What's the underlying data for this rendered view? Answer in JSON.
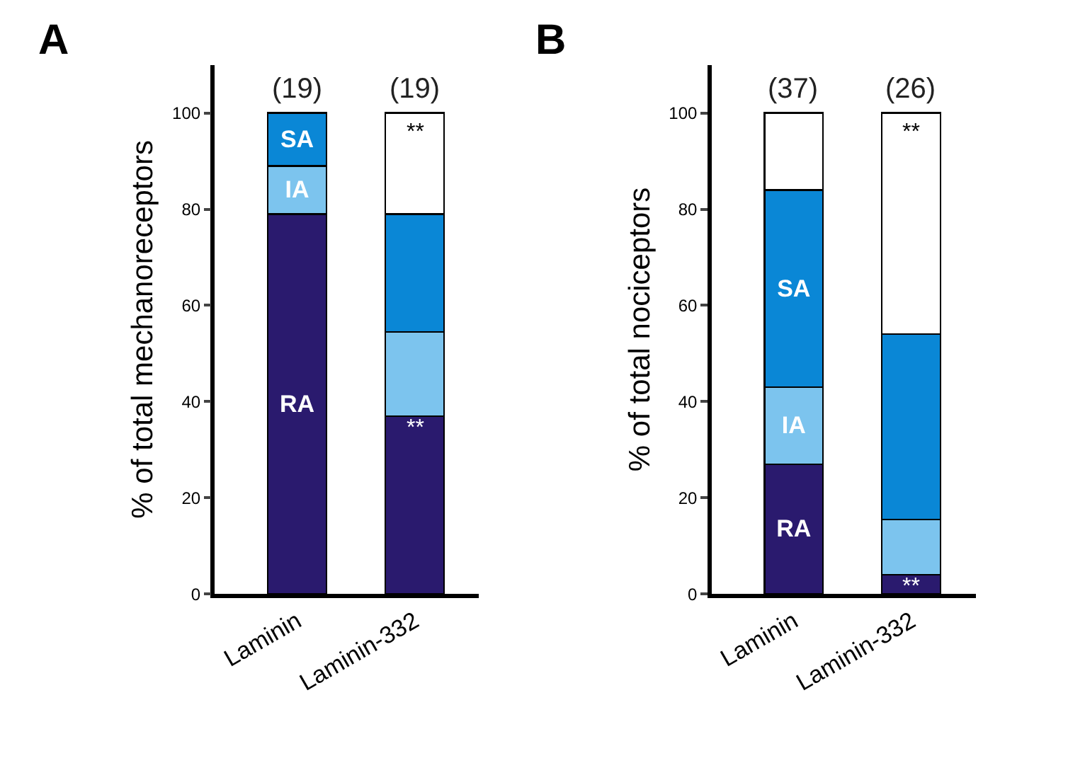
{
  "chart_data": [
    {
      "type": "bar",
      "title": "A",
      "ylabel": "% of total mechanoreceptors",
      "categories": [
        "Laminin",
        "Laminin-332"
      ],
      "stacked": true,
      "ylim": [
        0,
        110
      ],
      "yticks": [
        0,
        20,
        40,
        60,
        80,
        100
      ],
      "grid": false,
      "legend": false,
      "series": [
        {
          "name": "RA",
          "color": "#2a1a6e",
          "values": [
            79,
            37
          ]
        },
        {
          "name": "IA",
          "color": "#7cc4ee",
          "values": [
            10,
            17.5
          ]
        },
        {
          "name": "SA",
          "color": "#0a87d6",
          "values": [
            11,
            24.5
          ]
        },
        {
          "color": "#ffffff",
          "values": [
            null,
            21
          ]
        }
      ],
      "annotations": [
        "(19)",
        "(19)",
        "**",
        "**"
      ]
    },
    {
      "type": "bar",
      "title": "B",
      "ylabel": "% of total nociceptors",
      "categories": [
        "Laminin",
        "Laminin-332"
      ],
      "stacked": true,
      "ylim": [
        0,
        110
      ],
      "yticks": [
        0,
        20,
        40,
        60,
        80,
        100
      ],
      "grid": false,
      "legend": false,
      "series": [
        {
          "name": "RA",
          "color": "#2a1a6e",
          "values": [
            27,
            4
          ]
        },
        {
          "name": "IA",
          "color": "#7cc4ee",
          "values": [
            16,
            11.5
          ]
        },
        {
          "name": "SA",
          "color": "#0a87d6",
          "values": [
            41,
            38.5
          ]
        },
        {
          "color": "#ffffff",
          "values": [
            16,
            46
          ]
        }
      ],
      "annotations": [
        "(37)",
        "(26)",
        "**",
        "**"
      ]
    }
  ]
}
